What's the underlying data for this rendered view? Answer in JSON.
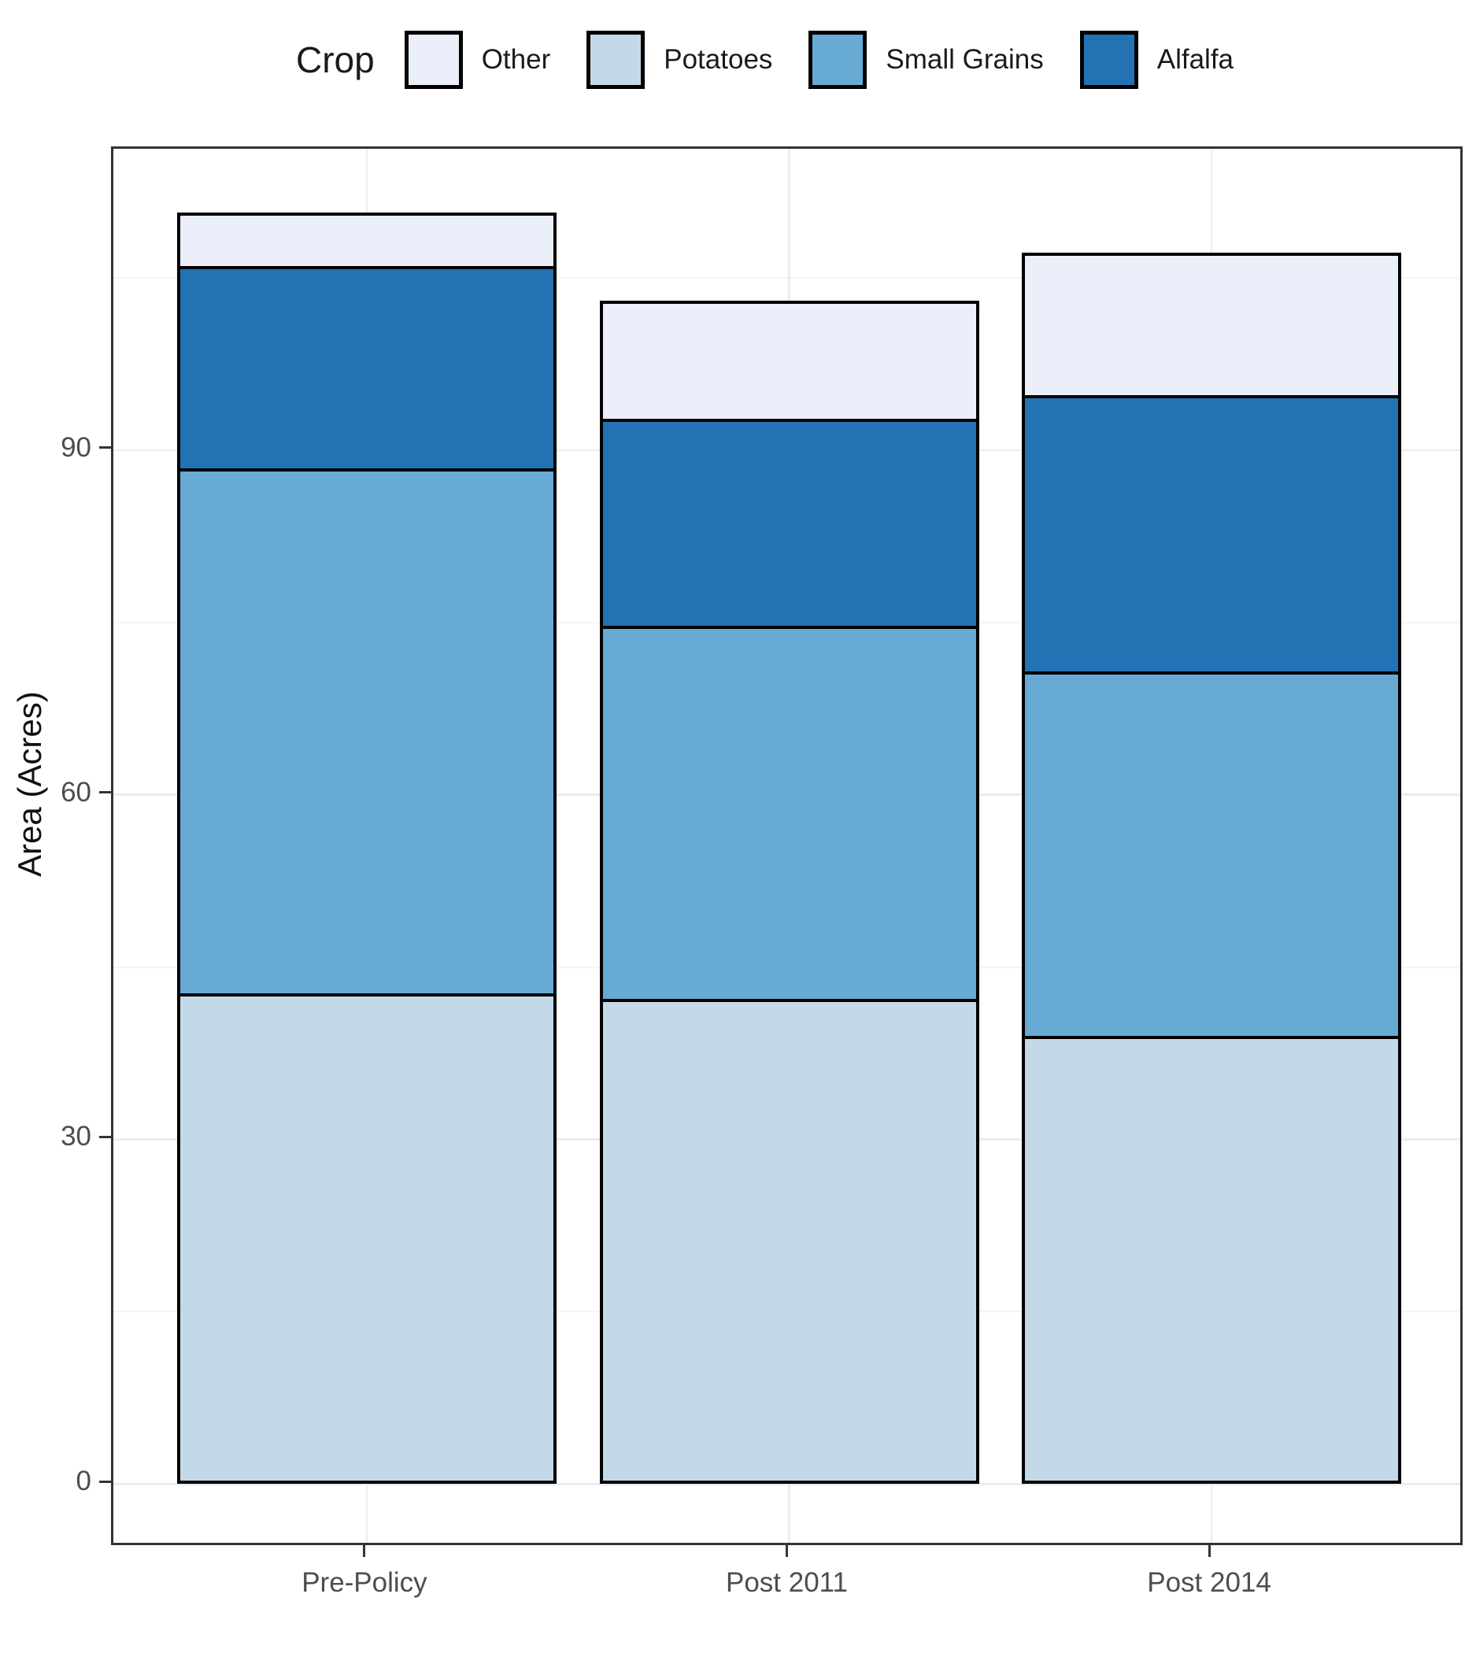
{
  "legend": {
    "title": "Crop",
    "items": [
      {
        "label": "Other",
        "color": "#EAEFF9"
      },
      {
        "label": "Potatoes",
        "color": "#C4D9E8"
      },
      {
        "label": "Small Grains",
        "color": "#67ABD5"
      },
      {
        "label": "Alfalfa",
        "color": "#2272B4"
      }
    ]
  },
  "y_axis": {
    "title": "Area (Acres)",
    "tick_labels": [
      "0",
      "30",
      "60",
      "90"
    ]
  },
  "x_axis": {
    "labels": [
      "Pre-Policy",
      "Post 2011",
      "Post 2014"
    ]
  },
  "chart_data": {
    "type": "bar",
    "stacked": true,
    "legend_title": "Crop",
    "legend_position": "top",
    "grid": true,
    "xlabel": "",
    "ylabel": "Area (Acres)",
    "categories": [
      "Pre-Policy",
      "Post 2011",
      "Post 2014"
    ],
    "series": [
      {
        "name": "Potatoes",
        "color": "#C4D9E8",
        "values": [
          42.7,
          42.2,
          39.0
        ]
      },
      {
        "name": "Small Grains",
        "color": "#67ABD5",
        "values": [
          45.7,
          32.5,
          31.7
        ]
      },
      {
        "name": "Alfalfa",
        "color": "#2272B4",
        "values": [
          17.6,
          18.0,
          24.1
        ]
      },
      {
        "name": "Other",
        "color": "#EAEFF9",
        "values": [
          4.7,
          10.3,
          12.4
        ]
      }
    ],
    "stack_totals": [
      110.7,
      103.0,
      107.2
    ],
    "legend_order": [
      "Other",
      "Potatoes",
      "Small Grains",
      "Alfalfa"
    ],
    "yticks": [
      0,
      30,
      60,
      90
    ],
    "yticks_minor": [
      15,
      45,
      75,
      105
    ],
    "ylim": [
      -5.53,
      116.23
    ],
    "bar_outline_color": "#000000"
  }
}
